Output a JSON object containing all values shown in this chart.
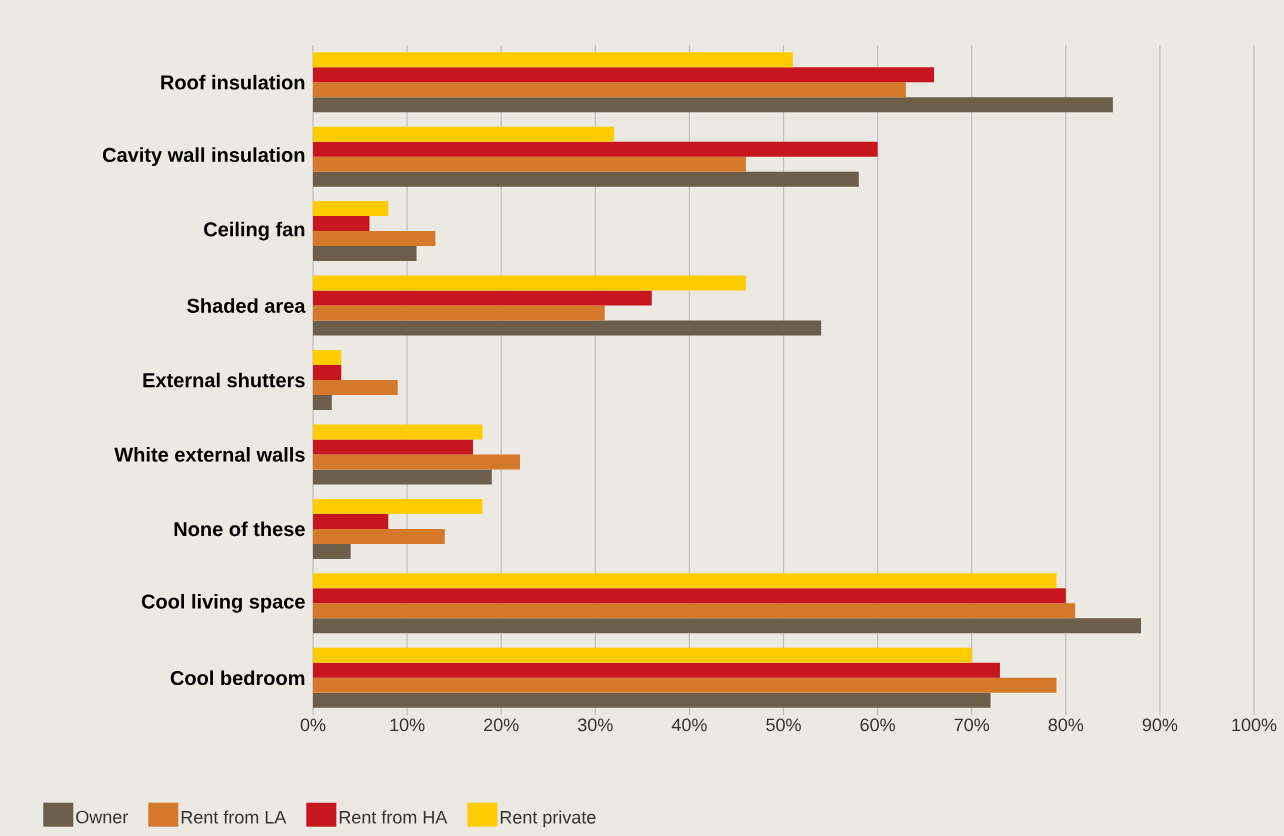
{
  "chart_data": {
    "type": "bar",
    "orientation": "horizontal",
    "categories": [
      "Roof insulation",
      "Cavity wall insulation",
      "Ceiling fan",
      "Shaded area",
      "External shutters",
      "White external walls",
      "None of these",
      "Cool living space",
      "Cool bedroom"
    ],
    "series": [
      {
        "name": "Owner",
        "color": "#6b5e4b",
        "values": [
          85,
          58,
          11,
          54,
          2,
          19,
          4,
          88,
          72
        ]
      },
      {
        "name": "Rent from LA",
        "color": "#d4782a",
        "values": [
          63,
          46,
          13,
          31,
          9,
          22,
          14,
          81,
          79
        ]
      },
      {
        "name": "Rent from HA",
        "color": "#c8161e",
        "values": [
          66,
          60,
          6,
          36,
          3,
          17,
          8,
          80,
          73
        ]
      },
      {
        "name": "Rent private",
        "color": "#ffcc00",
        "values": [
          51,
          32,
          8,
          46,
          3,
          18,
          18,
          79,
          70
        ]
      }
    ],
    "xlim": [
      0,
      100
    ],
    "xticks": [
      {
        "value": 0,
        "label": "0%"
      },
      {
        "value": 10,
        "label": "10%"
      },
      {
        "value": 20,
        "label": "20%"
      },
      {
        "value": 30,
        "label": "30%"
      },
      {
        "value": 40,
        "label": "40%"
      },
      {
        "value": 50,
        "label": "50%"
      },
      {
        "value": 60,
        "label": "60%"
      },
      {
        "value": 70,
        "label": "70%"
      },
      {
        "value": 80,
        "label": "80%"
      },
      {
        "value": 90,
        "label": "90%"
      },
      {
        "value": 100,
        "label": "100%"
      }
    ],
    "grid": "x",
    "legend": "bottom"
  }
}
